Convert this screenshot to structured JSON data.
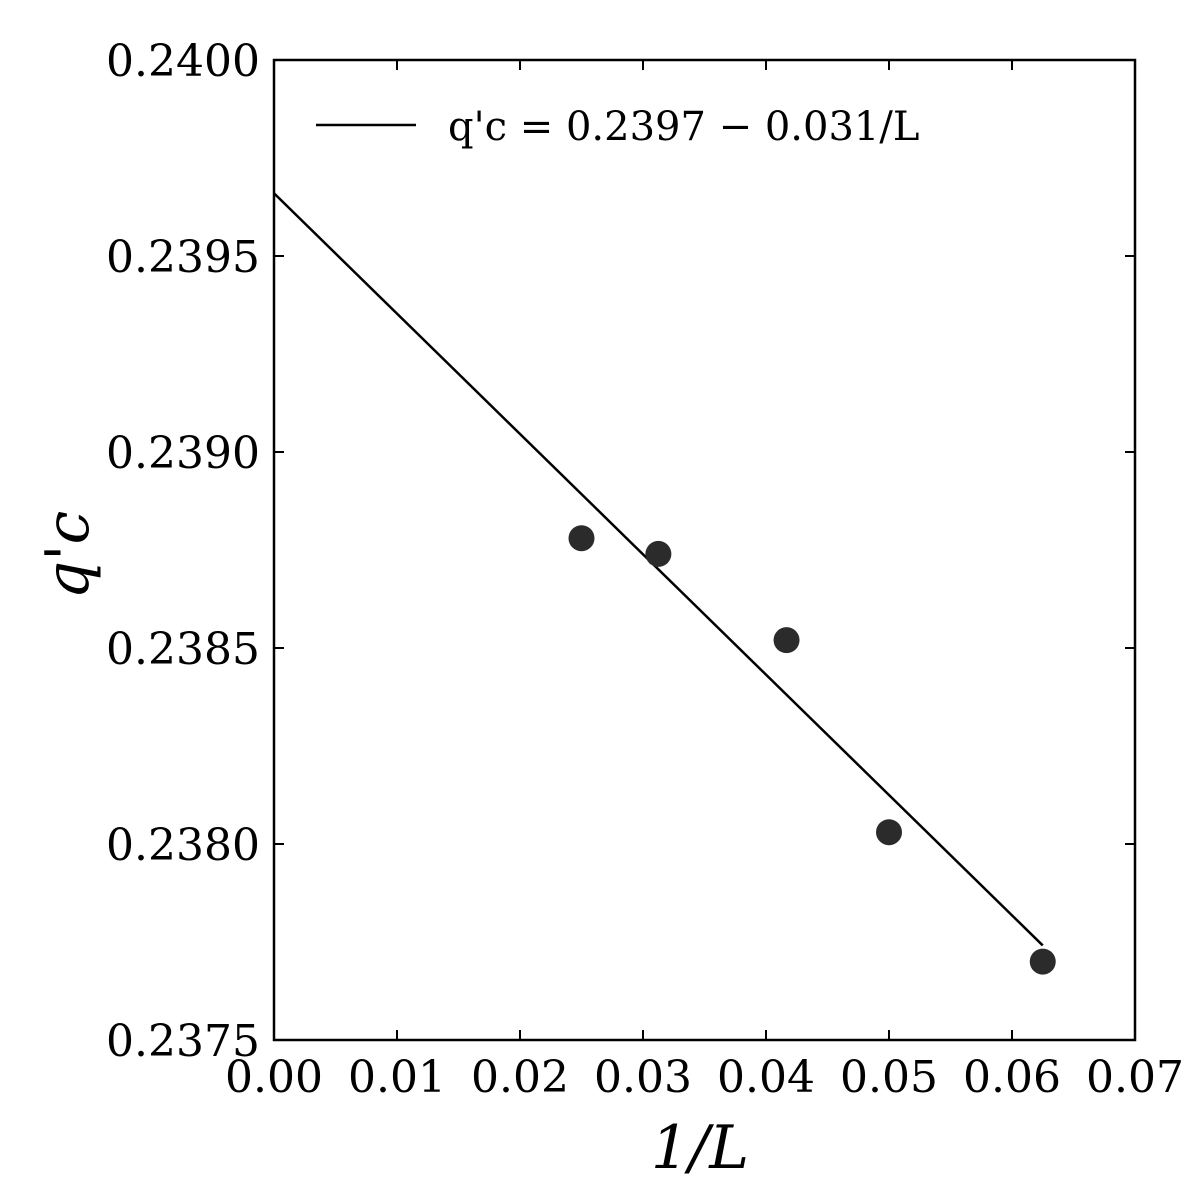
{
  "chart_data": {
    "type": "scatter",
    "xlabel": "1/L",
    "ylabel": "q'c",
    "xlim": [
      0.0,
      0.07
    ],
    "ylim": [
      0.2375,
      0.24
    ],
    "x_ticks": [
      "0.00",
      "0.01",
      "0.02",
      "0.03",
      "0.04",
      "0.05",
      "0.06",
      "0.07"
    ],
    "y_ticks": [
      "0.2375",
      "0.2380",
      "0.2385",
      "0.2390",
      "0.2395",
      "0.2400"
    ],
    "x_tick_values": [
      0.0,
      0.01,
      0.02,
      0.03,
      0.04,
      0.05,
      0.06,
      0.07
    ],
    "y_tick_values": [
      0.2375,
      0.238,
      0.2385,
      0.239,
      0.2395,
      0.24
    ],
    "grid": false,
    "legend_position": "top-left",
    "series": [
      {
        "kind": "line",
        "legend": "q'c = 0.2397 − 0.031/L",
        "color": "#000000",
        "intercept": 0.23966,
        "slope": -0.0307,
        "x": [
          0.0,
          0.0625
        ]
      },
      {
        "kind": "scatter",
        "color": "#2b2b2b",
        "x": [
          0.025,
          0.03125,
          0.04167,
          0.05,
          0.0625
        ],
        "y": [
          0.23878,
          0.23874,
          0.23852,
          0.23803,
          0.2377
        ]
      }
    ]
  }
}
